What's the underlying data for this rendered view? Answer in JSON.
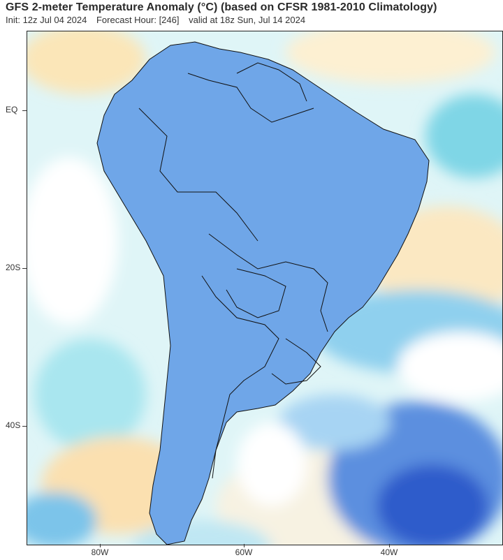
{
  "header": {
    "title": "GFS 2-meter Temperature Anomaly (°C) (based on CFSR 1981-2010 Climatology)",
    "init": "Init: 12z Jul 04 2024",
    "forecast_hour": "Forecast Hour: [246]",
    "valid": "valid at 18z Sun, Jul 14 2024"
  },
  "axes": {
    "lat_labels": [
      "EQ",
      "20S",
      "40S"
    ],
    "lon_labels": [
      "80W",
      "60W",
      "40W"
    ]
  },
  "colors": {
    "strong_warm": "#d83a1a",
    "warm": "#f08a3c",
    "slight_warm": "#fbe2b0",
    "neutral": "#ffffff",
    "slight_cool": "#a9e8ee",
    "cool": "#6aaee6",
    "cold": "#2f5fcf",
    "very_cold": "#9a4ae0",
    "borders": "#111111"
  }
}
